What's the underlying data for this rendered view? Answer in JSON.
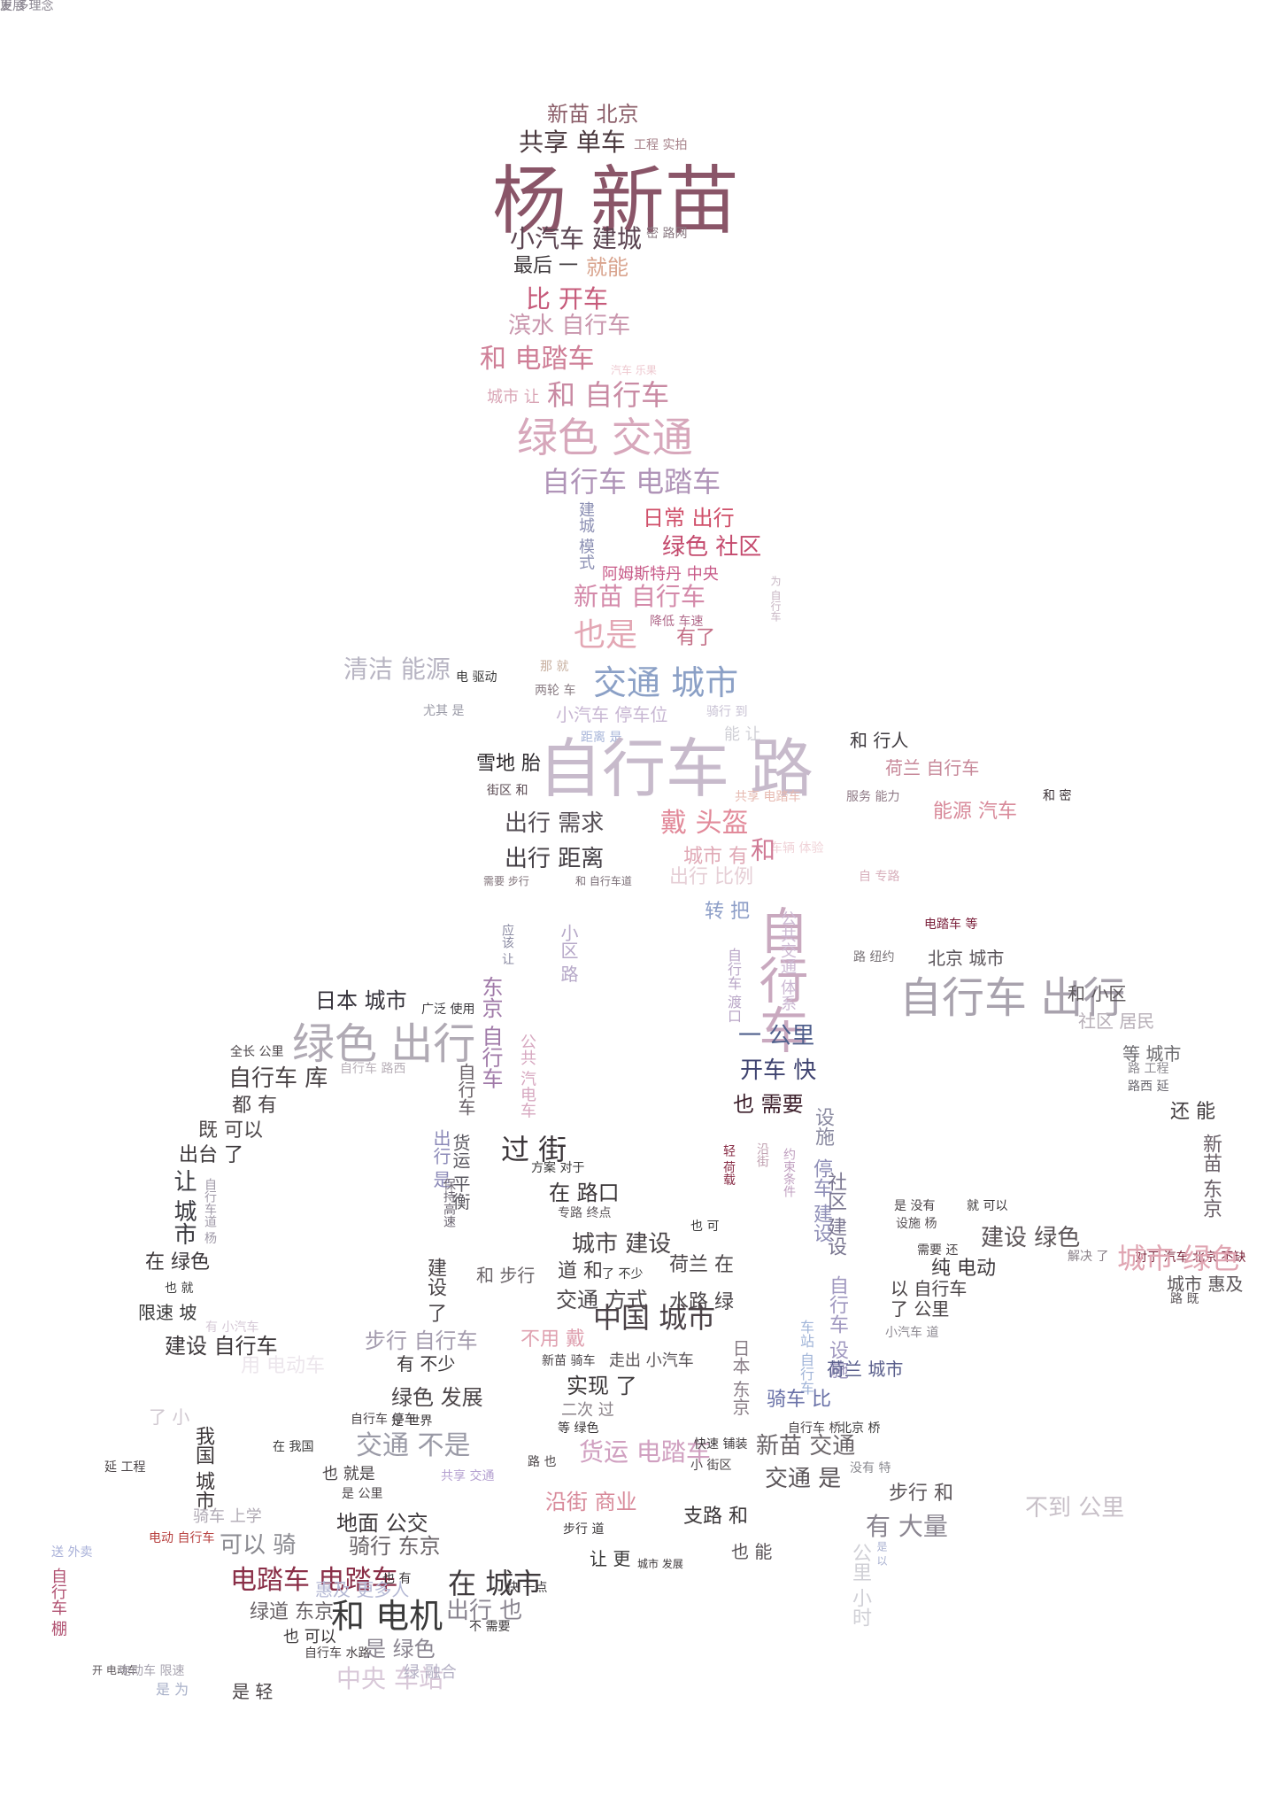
{
  "wordcloud": {
    "words": [
      {
        "text": "新苗 北京",
        "color": "#8c5f6a"
      },
      {
        "text": "共享 单车",
        "color": "#4b3a3f"
      },
      {
        "text": "工程 实拍",
        "color": "#a58088"
      },
      {
        "text": "杨 新苗",
        "color": "#8a5568"
      },
      {
        "text": "小汽车 建城",
        "color": "#5a4350"
      },
      {
        "text": "密 路网",
        "color": "#8a7a82"
      },
      {
        "text": "最后 一",
        "color": "#3f3a3d"
      },
      {
        "text": "就能",
        "color": "#d9a48e"
      },
      {
        "text": "比 开车",
        "color": "#c65a7a"
      },
      {
        "text": "滨水 自行车",
        "color": "#c996ad"
      },
      {
        "text": "和 电踏车",
        "color": "#cf7f97"
      },
      {
        "text": "汽车 乐果",
        "color": "#eec8cf"
      },
      {
        "text": "城市 让",
        "color": "#d9a5b5"
      },
      {
        "text": "和 自行车",
        "color": "#c98aa3"
      },
      {
        "text": "绿色 交通",
        "color": "#d7a7bb"
      },
      {
        "text": "自行车 电踏车",
        "color": "#b094b8"
      },
      {
        "text": "日常 出行",
        "color": "#d0506a"
      },
      {
        "text": "绿色 社区",
        "color": "#c44a6d"
      },
      {
        "text": "建城 模式",
        "color": "#8b8fb3"
      },
      {
        "text": "阿姆斯特丹 中央",
        "color": "#c85a88"
      },
      {
        "text": "新苗 自行车",
        "color": "#d48aaa"
      },
      {
        "text": "降低 车速",
        "color": "#b06a8a"
      },
      {
        "text": "也是",
        "color": "#e3a7b4"
      },
      {
        "text": "有了",
        "color": "#c36e86"
      },
      {
        "text": "为 自行车",
        "color": "#c8b7c4"
      },
      {
        "text": "清洁 能源",
        "color": "#b7b4c2"
      },
      {
        "text": "电 驱动",
        "color": "#3a3a3a"
      },
      {
        "text": "那 就",
        "color": "#c8b0a0"
      },
      {
        "text": "两轮 车",
        "color": "#8c7f86"
      },
      {
        "text": "交通 城市",
        "color": "#8ba0c6"
      },
      {
        "text": "尤其 是",
        "color": "#9a9aa6"
      },
      {
        "text": "小汽车 停车位",
        "color": "#c8b7d3"
      },
      {
        "text": "骑行 到",
        "color": "#c8c2d4"
      },
      {
        "text": "距离 是",
        "color": "#a6b4d8"
      },
      {
        "text": "能 让",
        "color": "#d0d0d6"
      },
      {
        "text": "和 行人",
        "color": "#3e3a3f"
      },
      {
        "text": "荷兰 自行车",
        "color": "#c78899"
      },
      {
        "text": "雪地 胎",
        "color": "#2e2a2d"
      },
      {
        "text": "自行车 路",
        "color": "#c7bacb"
      },
      {
        "text": "街区 和",
        "color": "#5a4a52"
      },
      {
        "text": "共享 电踏车",
        "color": "#e6b9b0"
      },
      {
        "text": "服务 能力",
        "color": "#8f7a86"
      },
      {
        "text": "能源 汽车",
        "color": "#d88a9a"
      },
      {
        "text": "和 密",
        "color": "#3a3035"
      },
      {
        "text": "出行 需求",
        "color": "#575057"
      },
      {
        "text": "戴 头盔",
        "color": "#e28a9a"
      },
      {
        "text": "车辆 体验",
        "color": "#f0d3d8"
      },
      {
        "text": "出行 距离",
        "color": "#454046"
      },
      {
        "text": "城市 有",
        "color": "#e0a9b6"
      },
      {
        "text": "和",
        "color": "#d07a95"
      },
      {
        "text": "出行 比例",
        "color": "#e6cfd6"
      },
      {
        "text": "需要 步行",
        "color": "#80737a"
      },
      {
        "text": "和 自行车道",
        "color": "#7a6e76"
      },
      {
        "text": "自 专路",
        "color": "#d8b0bc"
      },
      {
        "text": "转 把",
        "color": "#8e9fc8"
      },
      {
        "text": "电踏车 等",
        "color": "#7a1f3a"
      },
      {
        "text": "应该 让",
        "color": "#8a8aa2"
      },
      {
        "text": "小区 路",
        "color": "#b6a8c8"
      },
      {
        "text": "自行车",
        "color": "#c9a9bf"
      },
      {
        "text": "自行车 渡口",
        "color": "#b9a6c7"
      },
      {
        "text": "公共交通 体系",
        "color": "#ccb9d3"
      },
      {
        "text": "路 纽约",
        "color": "#7a7478"
      },
      {
        "text": "北京 城市",
        "color": "#5a545a"
      },
      {
        "text": "自行车 出行",
        "color": "#a8a2ad"
      },
      {
        "text": "和 小区",
        "color": "#5f5a5e"
      },
      {
        "text": "社区 居民",
        "color": "#b8b0b8"
      },
      {
        "text": "日本 城市",
        "color": "#34313a"
      },
      {
        "text": "广泛 使用",
        "color": "#3c3a3e"
      },
      {
        "text": "绿色 出行",
        "color": "#b0aab4"
      },
      {
        "text": "东京 自行车",
        "color": "#a07aa8"
      },
      {
        "text": "一 公里",
        "color": "#4f5f8c"
      },
      {
        "text": "开车 快",
        "color": "#3f4370"
      },
      {
        "text": "全长 公里",
        "color": "#4a4448"
      },
      {
        "text": "自行车 路西",
        "color": "#b8b0b8"
      },
      {
        "text": "自行车 库",
        "color": "#4a4346"
      },
      {
        "text": "自行车",
        "color": "#6a6268"
      },
      {
        "text": "公共 汽电车",
        "color": "#d7a8c0"
      },
      {
        "text": "也 需要",
        "color": "#3b1e2a"
      },
      {
        "text": "等 城市",
        "color": "#6c6b6f"
      },
      {
        "text": "路 工程",
        "color": "#8c8a90"
      },
      {
        "text": "路西 延",
        "color": "#6a6870"
      },
      {
        "text": "都 有",
        "color": "#4a4447"
      },
      {
        "text": "设施",
        "color": "#8a8aa0"
      },
      {
        "text": "还 能",
        "color": "#3f3a3d"
      },
      {
        "text": "既 可以",
        "color": "#4c4648"
      },
      {
        "text": "出行 是",
        "color": "#8c8ab8"
      },
      {
        "text": "货运 平衡",
        "color": "#5a5860"
      },
      {
        "text": "过 街",
        "color": "#3a3438"
      },
      {
        "text": "轻 荷载",
        "color": "#8a2f48"
      },
      {
        "text": "沿街",
        "color": "#c0a0b0"
      },
      {
        "text": "约束条件",
        "color": "#c0a0c0"
      },
      {
        "text": "出台 了",
        "color": "#3d383b"
      },
      {
        "text": "方案 对于",
        "color": "#3a3a3a"
      },
      {
        "text": "停车 建设",
        "color": "#9090b8"
      },
      {
        "text": "新苗 东京",
        "color": "#6a6068"
      },
      {
        "text": "让 城市",
        "color": "#3a3a40"
      },
      {
        "text": "自行车道 杨",
        "color": "#a09aa8"
      },
      {
        "text": "在 路口",
        "color": "#3b3638"
      },
      {
        "text": "保持高速",
        "color": "#6a6470"
      },
      {
        "text": "专路 终点",
        "color": "#605a5e"
      },
      {
        "text": "也 可",
        "color": "#3a3a3a"
      },
      {
        "text": "社区 建设",
        "color": "#7a7690"
      },
      {
        "text": "是 没有",
        "color": "#4a4448"
      },
      {
        "text": "就 可以",
        "color": "#3a3638"
      },
      {
        "text": "设施 杨",
        "color": "#5a5458"
      },
      {
        "text": "建设 绿色",
        "color": "#5c5558"
      },
      {
        "text": "对于 汽车 北京 不缺",
        "color": "#7a2238"
      },
      {
        "text": "需要 还",
        "color": "#4a4447"
      },
      {
        "text": "在 绿色",
        "color": "#3a3538"
      },
      {
        "text": "建设 了",
        "color": "#4a4548"
      },
      {
        "text": "城市 建设",
        "color": "#4a4447"
      },
      {
        "text": "和 步行",
        "color": "#6a6468"
      },
      {
        "text": "荷兰 在",
        "color": "#4a4447"
      },
      {
        "text": "纯 电动",
        "color": "#3f3a3d"
      },
      {
        "text": "城市 绿色",
        "color": "#e0a5b2"
      },
      {
        "text": "道 和",
        "color": "#4a4447"
      },
      {
        "text": "了 不少",
        "color": "#3a3a3a"
      },
      {
        "text": "解决 了",
        "color": "#8a8088"
      },
      {
        "text": "以 自行车",
        "color": "#4a4447"
      },
      {
        "text": "城市 惠及",
        "color": "#5a5458"
      },
      {
        "text": "也 就",
        "color": "#3a3a3a"
      },
      {
        "text": "交通 方式",
        "color": "#4f4a4e"
      },
      {
        "text": "水路 绿",
        "color": "#4a4548"
      },
      {
        "text": "了 公里",
        "color": "#4a4447"
      },
      {
        "text": "路 既",
        "color": "#5a5458"
      },
      {
        "text": "限速 坡",
        "color": "#3a3a3a"
      },
      {
        "text": "有 小汽车",
        "color": "#d5c8d6"
      },
      {
        "text": "中国 城市",
        "color": "#4b4247"
      },
      {
        "text": "车站 自行车",
        "color": "#a0b4d8"
      },
      {
        "text": "自行车 设施",
        "color": "#a098c0"
      },
      {
        "text": "建设 自行车",
        "color": "#3d383b"
      },
      {
        "text": "步行 自行车",
        "color": "#a49cae"
      },
      {
        "text": "不用 戴",
        "color": "#dfa1b0"
      },
      {
        "text": "有 不少",
        "color": "#3a3638"
      },
      {
        "text": "日本 东京",
        "color": "#8a7f88"
      },
      {
        "text": "小汽车 道",
        "color": "#8e8a92"
      },
      {
        "text": "新苗 骑车",
        "color": "#4a4448"
      },
      {
        "text": "走出 小汽车",
        "color": "#5a5458"
      },
      {
        "text": "荷兰 城市",
        "color": "#5a5f8c"
      },
      {
        "text": "用 电动车",
        "color": "#ece6ec"
      },
      {
        "text": "实现 了",
        "color": "#3a3638"
      },
      {
        "text": "绿色 发展",
        "color": "#4c4649"
      },
      {
        "text": "骑车 比",
        "color": "#6a72a8"
      },
      {
        "text": "自行车 停车",
        "color": "#4a4448"
      },
      {
        "text": "了 小",
        "color": "#d0c8d0"
      },
      {
        "text": "是 世界",
        "color": "#3a3638"
      },
      {
        "text": "二次 过",
        "color": "#8a8288"
      },
      {
        "text": "等 绿色",
        "color": "#3a3638"
      },
      {
        "text": "自行车 桥",
        "color": "#4a4447"
      },
      {
        "text": "北京 桥",
        "color": "#3a3a3a"
      },
      {
        "text": "在 我国",
        "color": "#3a3a3a"
      },
      {
        "text": "交通 不是",
        "color": "#9a9aa6"
      },
      {
        "text": "货运 电踏车",
        "color": "#d0a0c0"
      },
      {
        "text": "快速 铺装",
        "color": "#3d383b"
      },
      {
        "text": "新苗 交通",
        "color": "#6a6468"
      },
      {
        "text": "我国 城市",
        "color": "#3b3638"
      },
      {
        "text": "也 就是",
        "color": "#4a4447"
      },
      {
        "text": "共享 交通",
        "color": "#b4a0d0"
      },
      {
        "text": "路 也",
        "color": "#4a4447"
      },
      {
        "text": "小 街区",
        "color": "#4a4447"
      },
      {
        "text": "没有 特",
        "color": "#8a8a90"
      },
      {
        "text": "是 公里",
        "color": "#4a4447"
      },
      {
        "text": "交通 是",
        "color": "#5a5458"
      },
      {
        "text": "延 工程",
        "color": "#4a4447"
      },
      {
        "text": "步行 和",
        "color": "#5a5458"
      },
      {
        "text": "不到 公里",
        "color": "#c8c0c8"
      },
      {
        "text": "沿街 商业",
        "color": "#d88a9a"
      },
      {
        "text": "骑车 上学",
        "color": "#b0aab4"
      },
      {
        "text": "地面 公交",
        "color": "#3d383b"
      },
      {
        "text": "支路 和",
        "color": "#3a3638"
      },
      {
        "text": "有 大量",
        "color": "#8a8590"
      },
      {
        "text": "送 外卖",
        "color": "#a8b0d8"
      },
      {
        "text": "电动 自行车",
        "color": "#b7403f"
      },
      {
        "text": "可以 骑",
        "color": "#8a8a90"
      },
      {
        "text": "骑行 东京",
        "color": "#6a6468"
      },
      {
        "text": "步行 道",
        "color": "#3a3638"
      },
      {
        "text": "在 城市",
        "color": "#3f3a3d"
      },
      {
        "text": "让 更",
        "color": "#3a3a3a"
      },
      {
        "text": "城市 发展",
        "color": "#3b3638"
      },
      {
        "text": "也 能",
        "color": "#5a5458"
      },
      {
        "text": "公里 小时",
        "color": "#d0d0d6"
      },
      {
        "text": "是 以",
        "color": "#a8b0d0"
      },
      {
        "text": "自行车 棚",
        "color": "#b05070"
      },
      {
        "text": "电踏车 电踏车",
        "color": "#8a2f48"
      },
      {
        "text": "惠及 更多人",
        "color": "#b4b8d4"
      },
      {
        "text": "也 有",
        "color": "#3a3638"
      },
      {
        "text": "快 一点",
        "color": "#3a3638"
      },
      {
        "text": "绿道 东京",
        "color": "#6a6468"
      },
      {
        "text": "和 电机",
        "color": "#3a3a3a"
      },
      {
        "text": "出行 也",
        "color": "#8a8590"
      },
      {
        "text": "不 需要",
        "color": "#3a3638"
      },
      {
        "text": "也 可以",
        "color": "#3a3638"
      },
      {
        "text": "自行车 水路",
        "color": "#4a4447"
      },
      {
        "text": "是 绿色",
        "color": "#8a8590"
      },
      {
        "text": "开 电动车",
        "color": "#5a5458"
      },
      {
        "text": "电动车 限速",
        "color": "#a8a4b0"
      },
      {
        "text": "是 为",
        "color": "#a8b0c8"
      },
      {
        "text": "是 轻",
        "color": "#4a4447"
      },
      {
        "text": "中央 车站",
        "color": "#d8c8d8"
      },
      {
        "text": "绿 融合",
        "color": "#b4b0c4"
      },
      {
        "text": "更 多",
        "color": "#8a8590"
      },
      {
        "text": "发展 理念",
        "color": "#8a8590"
      }
    ]
  }
}
